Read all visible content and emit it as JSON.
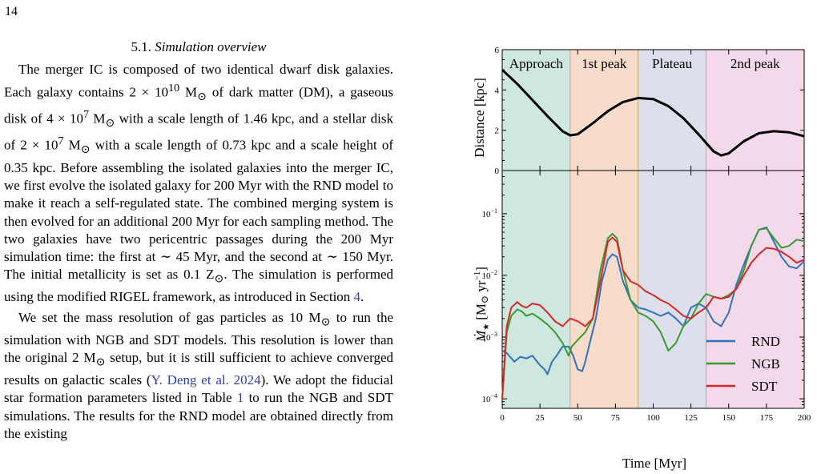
{
  "page_number": "14",
  "section": {
    "number": "5.1.",
    "title": "Simulation overview"
  },
  "paragraph1": {
    "s1": "The merger IC is composed of two identical dwarf disk galaxies. Each galaxy contains 2 × 10",
    "s1_sup": "10",
    "s2": " M",
    "s3": " of dark matter (DM), a gaseous disk of 4 × 10",
    "s3_sup": "7",
    "s4": " M",
    "s5": " with a scale length of 1.46 kpc, and a stellar disk of 2 × 10",
    "s5_sup": "7",
    "s6": " M",
    "s7": " with a scale length of 0.73 kpc and a scale height of 0.35 kpc. Before assembling the isolated galaxies into the merger IC, we first evolve the isolated galaxy for 200 Myr with the RND model to make it reach a self-regulated state. The combined merging system is then evolved for an additional 200 Myr for each sampling method. The two galaxies have two pericentric passages during the 200 Myr simulation time: the first at ∼ 45 Myr, and the second at ∼ 150 Myr. The initial metallicity is set as 0.1 Z",
    "s8": ". The simulation is performed using the modified RIGEL framework, as introduced in Section ",
    "s8_link": "4",
    "s9": "."
  },
  "paragraph2": {
    "s1": "We set the mass resolution of gas particles as 10 M",
    "s2": " to run the simulation with NGB and SDT models. This resolution is lower than the original 2 M",
    "s3": " setup, but it is still sufficient to achieve converged results on galactic scales (",
    "cite": "Y. Deng et al. 2024",
    "s4": "). We adopt the fiducial star formation parameters listed in Table ",
    "table_link": "1",
    "s5": " to run the NGB and SDT simulations. The results for the RND model are obtained directly from the existing"
  },
  "sun_symbol": "⊙",
  "link_color": "#2f3fa8",
  "figure": {
    "phases": [
      {
        "label": "Approach",
        "t0": 0,
        "t1": 45,
        "color": "#cfe8df"
      },
      {
        "label": "1st peak",
        "t0": 45,
        "t1": 90,
        "color": "#f8dccb"
      },
      {
        "label": "Plateau",
        "t0": 90,
        "t1": 135,
        "color": "#dde0ec"
      },
      {
        "label": "2nd peak",
        "t0": 135,
        "t1": 200,
        "color": "#f4d9ea"
      }
    ],
    "top_ylabel": "Distance [kpc]",
    "bottom_ylabel": "Ṁ",
    "bottom_ylabel_sub": "★",
    "bottom_ylabel_unit": "[M",
    "bottom_ylabel_unit2": " yr",
    "bottom_ylabel_exp": "−1",
    "bottom_ylabel_close": "]",
    "xlabel": "Time [Myr]"
  },
  "chart_data": [
    {
      "type": "line",
      "title": "",
      "xlabel": "",
      "ylabel": "Distance [kpc]",
      "xlim": [
        0,
        200
      ],
      "ylim": [
        0,
        6
      ],
      "yticks": [
        "0",
        "2",
        "4",
        "6"
      ],
      "series": [
        {
          "color": "#000000",
          "x": [
            0,
            10,
            20,
            30,
            40,
            45,
            50,
            60,
            70,
            80,
            90,
            100,
            110,
            120,
            130,
            140,
            145,
            150,
            160,
            170,
            180,
            190,
            200
          ],
          "y": [
            5.0,
            4.3,
            3.5,
            2.7,
            1.95,
            1.75,
            1.8,
            2.35,
            2.95,
            3.4,
            3.6,
            3.55,
            3.2,
            2.6,
            1.8,
            0.95,
            0.75,
            0.85,
            1.45,
            1.85,
            1.95,
            1.9,
            1.7
          ]
        }
      ]
    },
    {
      "type": "line",
      "title": "",
      "xlabel": "Time [Myr]",
      "ylabel": "Ṁ★ [M⊙ yr−1]",
      "yscale": "log",
      "xlim": [
        0,
        200
      ],
      "ylim": [
        7e-05,
        0.5
      ],
      "xticks": [
        "0",
        "25",
        "50",
        "75",
        "100",
        "125",
        "150",
        "175",
        "200"
      ],
      "yticks": [
        "10",
        "10",
        "10",
        "10"
      ],
      "yticks_exp": [
        "−4",
        "−3",
        "−2",
        "−1"
      ],
      "legend": "bottom-right",
      "series": [
        {
          "name": "RND",
          "color": "#2f73b8",
          "x": [
            0,
            3,
            8,
            12,
            16,
            20,
            25,
            28,
            30,
            33,
            36,
            40,
            44,
            47,
            50,
            53,
            55,
            58,
            62,
            66,
            70,
            73,
            76,
            80,
            85,
            90,
            95,
            100,
            105,
            110,
            115,
            120,
            125,
            130,
            135,
            140,
            145,
            150,
            155,
            160,
            165,
            170,
            175,
            180,
            185,
            190,
            195,
            200
          ],
          "y": [
            0.0006,
            0.00055,
            0.0004,
            0.00048,
            0.00045,
            0.0005,
            0.00035,
            0.0003,
            0.00025,
            0.0004,
            0.0005,
            0.0007,
            0.0007,
            0.0005,
            0.0003,
            0.00028,
            0.0004,
            0.0008,
            0.002,
            0.008,
            0.018,
            0.022,
            0.02,
            0.008,
            0.004,
            0.003,
            0.0028,
            0.0025,
            0.0022,
            0.0025,
            0.002,
            0.0015,
            0.003,
            0.0035,
            0.003,
            0.0018,
            0.0015,
            0.0025,
            0.007,
            0.015,
            0.03,
            0.055,
            0.06,
            0.035,
            0.02,
            0.014,
            0.013,
            0.017
          ]
        },
        {
          "name": "NGB",
          "color": "#3a9a32",
          "x": [
            0,
            3,
            6,
            10,
            13,
            16,
            20,
            25,
            30,
            35,
            40,
            44,
            46,
            50,
            55,
            60,
            65,
            70,
            73,
            76,
            80,
            85,
            90,
            95,
            100,
            105,
            110,
            115,
            120,
            125,
            130,
            135,
            140,
            145,
            150,
            155,
            160,
            165,
            170,
            175,
            180,
            185,
            190,
            195,
            200
          ],
          "y": [
            0.0001,
            0.0012,
            0.0022,
            0.0028,
            0.0026,
            0.0022,
            0.0024,
            0.002,
            0.0016,
            0.0012,
            0.0008,
            0.0005,
            0.0007,
            0.0009,
            0.0012,
            0.002,
            0.012,
            0.04,
            0.047,
            0.04,
            0.012,
            0.004,
            0.0025,
            0.0022,
            0.0018,
            0.0012,
            0.0006,
            0.0008,
            0.0015,
            0.002,
            0.0035,
            0.005,
            0.0045,
            0.0042,
            0.0048,
            0.006,
            0.012,
            0.03,
            0.055,
            0.058,
            0.04,
            0.028,
            0.03,
            0.038,
            0.036
          ]
        },
        {
          "name": "SDT",
          "color": "#d62728",
          "x": [
            0,
            3,
            6,
            10,
            13,
            16,
            20,
            25,
            30,
            35,
            40,
            45,
            50,
            55,
            60,
            65,
            70,
            73,
            76,
            80,
            85,
            90,
            95,
            100,
            105,
            110,
            115,
            120,
            125,
            130,
            135,
            140,
            145,
            150,
            155,
            160,
            165,
            170,
            175,
            180,
            185,
            190,
            195,
            200
          ],
          "y": [
            0.0001,
            0.0015,
            0.003,
            0.0037,
            0.0032,
            0.003,
            0.0035,
            0.0033,
            0.0025,
            0.0018,
            0.0015,
            0.002,
            0.0018,
            0.0015,
            0.002,
            0.008,
            0.035,
            0.041,
            0.035,
            0.012,
            0.008,
            0.007,
            0.0055,
            0.0048,
            0.004,
            0.0035,
            0.0028,
            0.0022,
            0.002,
            0.0025,
            0.003,
            0.0045,
            0.0042,
            0.0045,
            0.006,
            0.01,
            0.016,
            0.022,
            0.028,
            0.027,
            0.024,
            0.02,
            0.016,
            0.018
          ]
        }
      ]
    }
  ]
}
